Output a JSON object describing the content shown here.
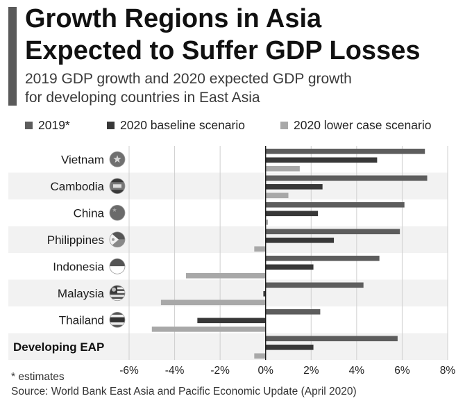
{
  "header": {
    "title_line1": "Growth Regions in Asia",
    "title_line2": "Expected to Suffer GDP Losses",
    "subtitle_line1": "2019 GDP growth and 2020 expected GDP growth",
    "subtitle_line2": "for developing countries in East Asia"
  },
  "footer": {
    "footnote": "* estimates",
    "source": "World Bank East Asia and Pacific Economic Update (April 2020)"
  },
  "colors": {
    "accent": "#5a5a5a",
    "series_2019": "#5d5d5d",
    "series_baseline": "#383838",
    "series_lower": "#a8a8a8",
    "band": "#f2f2f2",
    "grid": "#cfcfcf"
  },
  "chart_data": {
    "type": "bar",
    "orientation": "horizontal",
    "categories": [
      "Vietnam",
      "Cambodia",
      "China",
      "Philippines",
      "Indonesia",
      "Malaysia",
      "Thailand",
      "Developing EAP"
    ],
    "category_icons": [
      "vietnam-flag-icon",
      "cambodia-flag-icon",
      "china-flag-icon",
      "philippines-flag-icon",
      "indonesia-flag-icon",
      "malaysia-flag-icon",
      "thailand-flag-icon",
      ""
    ],
    "series": [
      {
        "name": "2019*",
        "values": [
          7.0,
          7.1,
          6.1,
          5.9,
          5.0,
          4.3,
          2.4,
          5.8
        ]
      },
      {
        "name": "2020 baseline scenario",
        "values": [
          4.9,
          2.5,
          2.3,
          3.0,
          2.1,
          -0.1,
          -3.0,
          2.1
        ]
      },
      {
        "name": "2020 lower case scenario",
        "values": [
          1.5,
          1.0,
          0.1,
          -0.5,
          -3.5,
          -4.6,
          -5.0,
          -0.5
        ]
      }
    ],
    "xlim": [
      -6,
      8
    ],
    "x_ticks": [
      "-6%",
      "-4%",
      "-2%",
      "0%",
      "2%",
      "4%",
      "6%",
      "8%"
    ],
    "tick_values": [
      -6,
      -4,
      -2,
      0,
      2,
      4,
      6,
      8
    ],
    "grid": true,
    "legend_position": "top"
  }
}
